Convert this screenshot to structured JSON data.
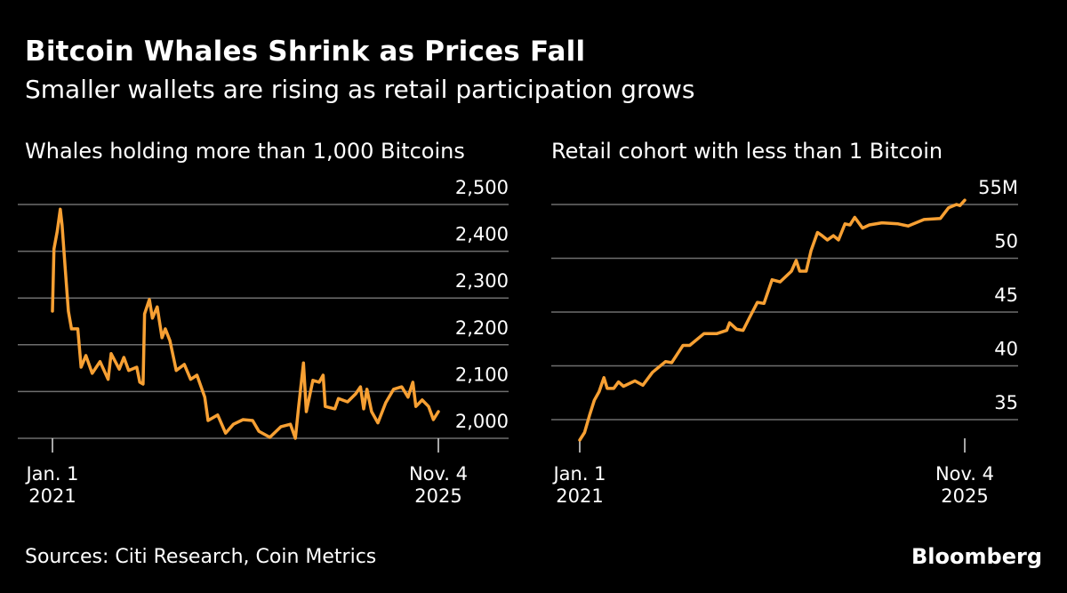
{
  "header": {
    "title": "Bitcoin Whales Shrink as Prices Fall",
    "subtitle": "Smaller wallets are rising as retail participation grows"
  },
  "footer": {
    "source": "Sources: Citi Research, Coin Metrics",
    "logo": "Bloomberg"
  },
  "colors": {
    "background": "#000000",
    "line": "#f7a033",
    "grid": "#6e6e6e",
    "text": "#ffffff"
  },
  "chart_data": [
    {
      "type": "line",
      "title": "Whales holding more than 1,000 Bitcoins",
      "ylim": [
        1985,
        2500
      ],
      "yticks": [
        2000,
        2100,
        2200,
        2300,
        2400,
        2500
      ],
      "ytick_labels": [
        "2,000",
        "2,100",
        "2,200",
        "2,300",
        "2,400",
        "2,500"
      ],
      "xlim": [
        "2021-01-01",
        "2025-11-04"
      ],
      "xtick_labels": [
        [
          "Jan. 1",
          "2021"
        ],
        [
          "Nov. 4",
          "2025"
        ]
      ],
      "grid": true,
      "x": [
        "2021-01-01",
        "2021-01-08",
        "2021-01-23",
        "2021-02-06",
        "2021-02-14",
        "2021-02-28",
        "2021-03-15",
        "2021-03-29",
        "2021-04-27",
        "2021-05-12",
        "2021-06-03",
        "2021-07-02",
        "2021-08-07",
        "2021-09-13",
        "2021-09-27",
        "2021-11-03",
        "2021-11-24",
        "2021-12-16",
        "2022-01-22",
        "2022-02-05",
        "2022-02-20",
        "2022-02-27",
        "2022-03-21",
        "2022-04-04",
        "2022-04-26",
        "2022-05-18",
        "2022-06-02",
        "2022-06-23",
        "2022-07-22",
        "2022-08-28",
        "2022-09-26",
        "2022-10-25",
        "2022-11-30",
        "2022-12-15",
        "2023-01-28",
        "2023-03-05",
        "2023-04-10",
        "2023-05-24",
        "2023-07-07",
        "2023-08-05",
        "2023-09-24",
        "2023-11-14",
        "2023-12-27",
        "2024-01-19",
        "2024-02-03",
        "2024-02-25",
        "2024-03-09",
        "2024-04-08",
        "2024-05-07",
        "2024-05-25",
        "2024-06-04",
        "2024-07-18",
        "2024-08-03",
        "2024-09-14",
        "2024-10-21",
        "2024-11-12",
        "2024-11-27",
        "2024-12-12",
        "2025-01-02",
        "2025-01-31",
        "2025-03-08",
        "2025-04-13",
        "2025-05-20",
        "2025-06-18",
        "2025-07-10",
        "2025-07-24",
        "2025-08-22",
        "2025-09-20",
        "2025-10-12",
        "2025-11-04"
      ],
      "y": [
        2272,
        2405,
        2443,
        2490,
        2456,
        2367,
        2272,
        2234,
        2234,
        2152,
        2177,
        2139,
        2164,
        2126,
        2181,
        2148,
        2173,
        2145,
        2152,
        2120,
        2116,
        2266,
        2297,
        2257,
        2281,
        2215,
        2234,
        2209,
        2145,
        2158,
        2126,
        2135,
        2088,
        2038,
        2050,
        2011,
        2030,
        2040,
        2038,
        2015,
        2002,
        2025,
        2030,
        2000,
        2068,
        2161,
        2057,
        2124,
        2120,
        2135,
        2068,
        2063,
        2085,
        2078,
        2095,
        2110,
        2063,
        2105,
        2057,
        2033,
        2076,
        2105,
        2110,
        2088,
        2120,
        2068,
        2082,
        2068,
        2040,
        2057
      ]
    },
    {
      "type": "line",
      "title": "Retail cohort with less than 1 Bitcoin",
      "ylim": [
        32.5,
        55.5
      ],
      "yticks": [
        35,
        40,
        45,
        50,
        55
      ],
      "ytick_labels": [
        "35",
        "40",
        "45",
        "50",
        "55M"
      ],
      "xlim": [
        "2021-01-01",
        "2025-11-04"
      ],
      "xtick_labels": [
        [
          "Jan. 1",
          "2021"
        ],
        [
          "Nov. 4",
          "2025"
        ]
      ],
      "grid": true,
      "x": [
        "2021-01-01",
        "2021-01-23",
        "2021-02-15",
        "2021-03-09",
        "2021-03-31",
        "2021-04-22",
        "2021-05-07",
        "2021-06-06",
        "2021-06-28",
        "2021-07-21",
        "2021-09-11",
        "2021-10-18",
        "2021-12-01",
        "2022-01-30",
        "2022-02-27",
        "2022-04-20",
        "2022-05-21",
        "2022-07-26",
        "2022-09-23",
        "2022-11-07",
        "2022-11-20",
        "2022-12-23",
        "2023-01-21",
        "2023-02-20",
        "2023-03-28",
        "2023-04-27",
        "2023-06-03",
        "2023-07-10",
        "2023-08-31",
        "2023-09-22",
        "2023-10-08",
        "2023-11-07",
        "2023-11-29",
        "2023-12-29",
        "2024-01-19",
        "2024-02-12",
        "2024-03-11",
        "2024-04-03",
        "2024-05-03",
        "2024-05-26",
        "2024-06-17",
        "2024-07-23",
        "2024-08-23",
        "2024-10-20",
        "2025-01-02",
        "2025-02-17",
        "2025-05-01",
        "2025-07-15",
        "2025-08-22",
        "2025-09-27",
        "2025-10-13",
        "2025-11-04"
      ],
      "y": [
        33.1,
        33.8,
        35.4,
        36.8,
        37.6,
        38.9,
        37.9,
        37.9,
        38.5,
        38.1,
        38.6,
        38.2,
        39.4,
        40.4,
        40.3,
        41.9,
        41.9,
        43.0,
        43.0,
        43.3,
        44.0,
        43.4,
        43.3,
        44.5,
        45.9,
        45.8,
        48.0,
        47.8,
        48.8,
        49.8,
        48.8,
        48.8,
        50.7,
        52.4,
        52.1,
        51.7,
        52.1,
        51.7,
        53.2,
        53.1,
        53.8,
        52.8,
        53.1,
        53.3,
        53.2,
        53.0,
        53.6,
        53.7,
        54.7,
        55.0,
        54.9,
        55.4
      ]
    }
  ]
}
